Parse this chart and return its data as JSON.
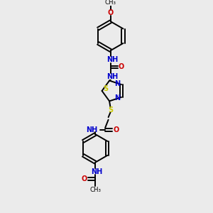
{
  "background_color": "#ebebeb",
  "bond_color": "#000000",
  "N_color": "#0000cc",
  "O_color": "#cc0000",
  "S_color": "#cccc00",
  "text_color": "#000000",
  "figsize": [
    3.0,
    3.0
  ],
  "dpi": 100,
  "xlim": [
    0,
    10
  ],
  "ylim": [
    0,
    10
  ]
}
